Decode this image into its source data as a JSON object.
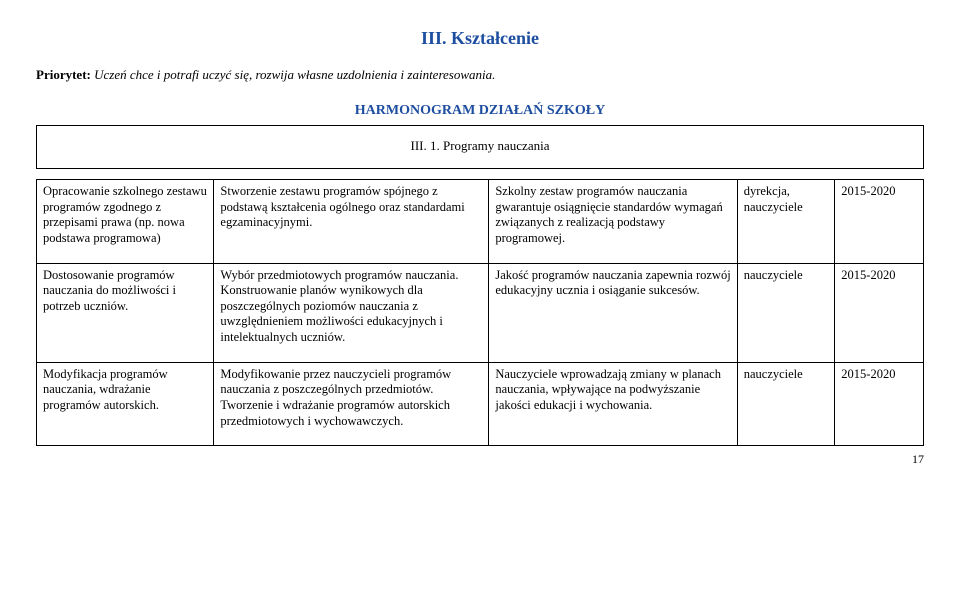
{
  "section_title": "III. Kształcenie",
  "priority_label": "Priorytet: ",
  "priority_text": "Uczeń chce i potrafi uczyć się, rozwija  własne uzdolnienia i zainteresowania.",
  "harmonogram_title": "HARMONOGRAM DZIAŁAŃ SZKOŁY",
  "box_caption": "III. 1. Programy nauczania",
  "table": {
    "rows": [
      {
        "c1": "Opracowanie szkolnego zestawu programów zgodnego z przepisami prawa (np. nowa podstawa programowa)",
        "c2": "Stworzenie zestawu programów spójnego z  podstawą kształcenia ogólnego oraz standardami egzaminacyjnymi.",
        "c3": "Szkolny   zestaw programów nauczania gwarantuje osiągnięcie standardów wymagań związanych z realizacją podstawy programowej.",
        "c4": "dyrekcja, nauczyciele",
        "c5": "2015-2020"
      },
      {
        "c1": "Dostosowanie programów nauczania do możliwości i potrzeb uczniów.",
        "c2": "Wybór przedmiotowych programów nauczania.\nKonstruowanie planów wynikowych dla poszczególnych poziomów nauczania z uwzględnieniem możliwości edukacyjnych i intelektualnych uczniów.",
        "c3": "Jakość programów nauczania zapewnia rozwój edukacyjny ucznia i  osiąganie sukcesów.",
        "c4": "nauczyciele",
        "c5": "2015-2020"
      },
      {
        "c1": "Modyfikacja programów nauczania, wdrażanie programów autorskich.",
        "c2": "Modyfikowanie przez nauczycieli programów nauczania z poszczególnych przedmiotów.\nTworzenie i wdrażanie programów autorskich przedmiotowych i wychowawczych.",
        "c3": "Nauczyciele wprowadzają zmiany w planach nauczania, wpływające na podwyższanie jakości edukacji i wychowania.",
        "c4": "nauczyciele",
        "c5": "2015-2020"
      }
    ]
  },
  "page_number": "17"
}
